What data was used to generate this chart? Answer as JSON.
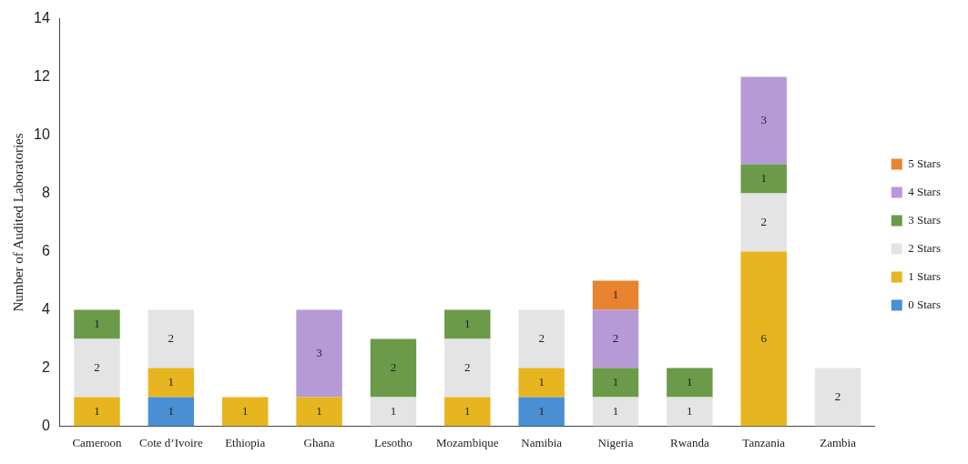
{
  "chart_data": {
    "type": "bar",
    "stacked": true,
    "ylabel": "Number of Audited Laboratories",
    "categories": [
      "Cameroon",
      "Cote d’Ivoire",
      "Ethiopia",
      "Ghana",
      "Lesotho",
      "Mozambique",
      "Namibia",
      "Nigeria",
      "Rwanda",
      "Tanzania",
      "Zambia"
    ],
    "series": [
      {
        "name": "0 Stars",
        "color": "#4a8fd4",
        "values": [
          null,
          1,
          null,
          null,
          null,
          null,
          1,
          null,
          null,
          null,
          null
        ]
      },
      {
        "name": "1 Stars",
        "color": "#e6b520",
        "values": [
          1,
          1,
          1,
          1,
          null,
          1,
          1,
          null,
          null,
          6,
          null
        ]
      },
      {
        "name": "2 Stars",
        "color": "#e4e4e4",
        "values": [
          2,
          2,
          null,
          null,
          1,
          2,
          2,
          1,
          1,
          2,
          2
        ]
      },
      {
        "name": "3 Stars",
        "color": "#6b9a48",
        "values": [
          1,
          null,
          null,
          null,
          2,
          1,
          null,
          1,
          1,
          1,
          null
        ]
      },
      {
        "name": "4 Stars",
        "color": "#b59ad6",
        "values": [
          null,
          null,
          null,
          3,
          null,
          null,
          null,
          2,
          null,
          3,
          null
        ]
      },
      {
        "name": "5 Stars",
        "color": "#e8832f",
        "values": [
          null,
          null,
          null,
          null,
          null,
          null,
          null,
          1,
          null,
          null,
          null
        ]
      }
    ],
    "ylim": [
      0,
      14
    ],
    "yticks": [
      0,
      2,
      4,
      6,
      8,
      10,
      12,
      14
    ],
    "grid": false,
    "legend": "right",
    "data_labels": true
  }
}
